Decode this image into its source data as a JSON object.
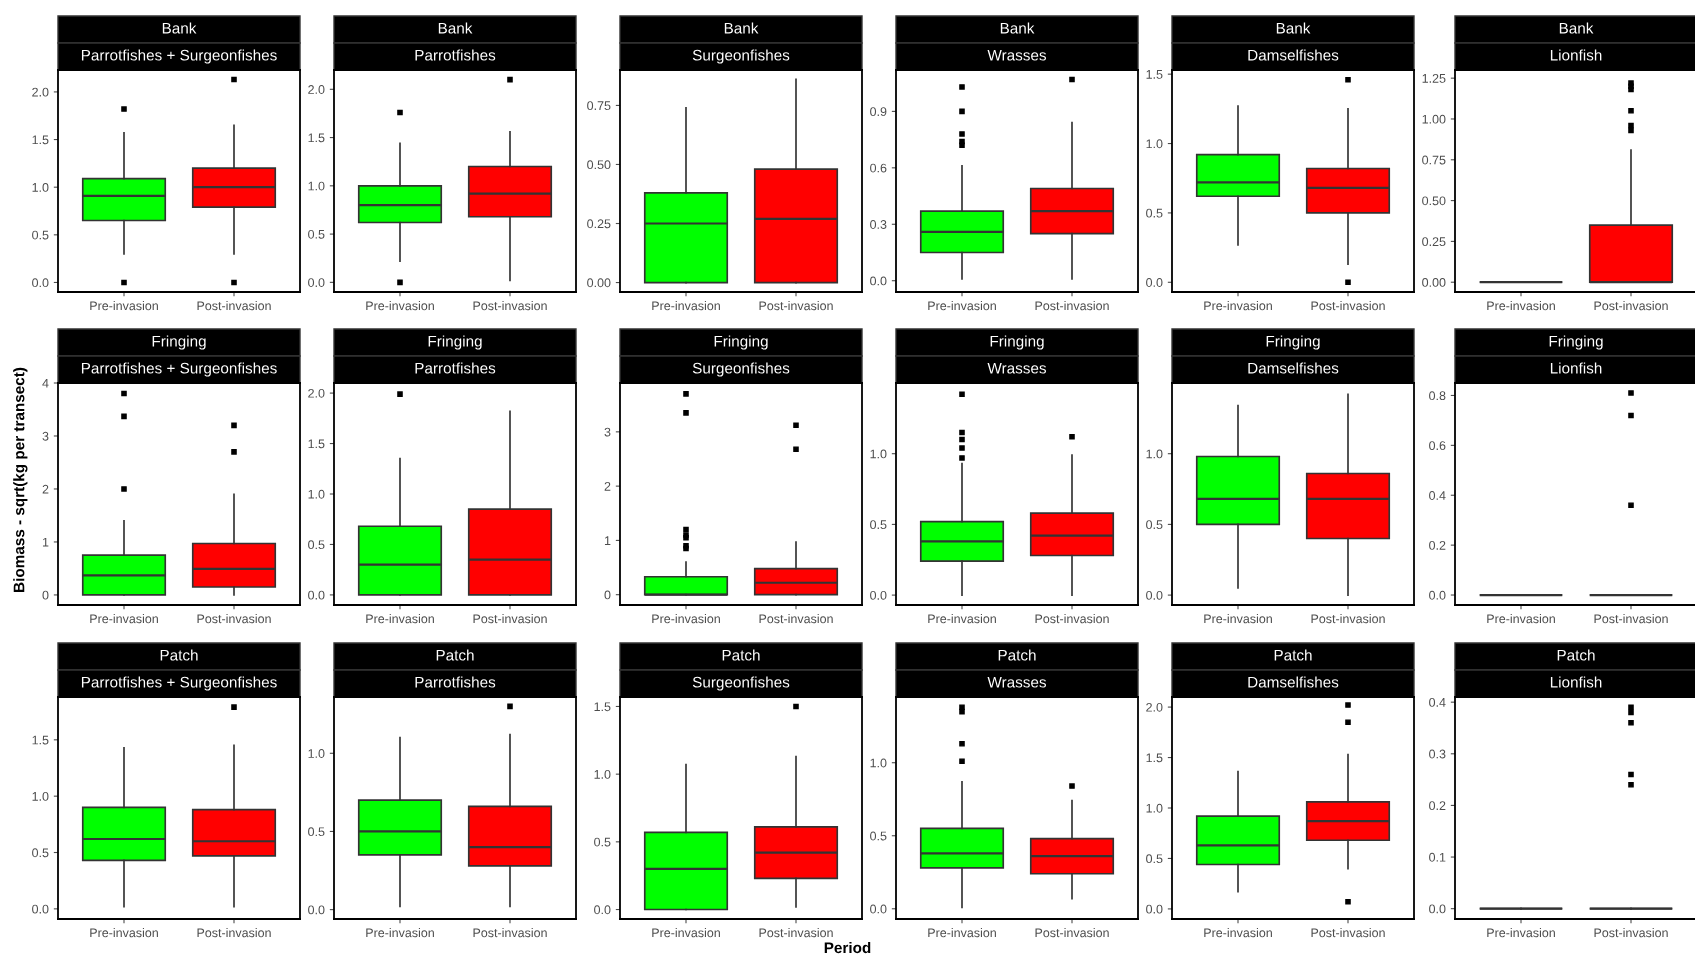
{
  "chart_data": [
    {
      "type": "box",
      "title": "Bank",
      "subtitle": "Parrotfishes + Surgeonfishes",
      "categories": [
        "Pre-invasion",
        "Post-invasion"
      ],
      "colors": [
        "#00ff00",
        "#ff0000"
      ],
      "ylim": [
        -0.1,
        2.23
      ],
      "yticks": [
        {
          "value": 0,
          "label": "0.0"
        },
        {
          "value": 0.5,
          "label": "0.5"
        },
        {
          "value": 1,
          "label": "1.0"
        },
        {
          "value": 1.5,
          "label": "1.5"
        },
        {
          "value": 2,
          "label": "2.0"
        }
      ],
      "boxes": [
        {
          "low": 0.3,
          "q1": 0.65,
          "median": 0.91,
          "q3": 1.09,
          "high": 1.57,
          "outliers": [
            0.0,
            1.82
          ]
        },
        {
          "low": 0.3,
          "q1": 0.79,
          "median": 1.0,
          "q3": 1.2,
          "high": 1.65,
          "outliers": [
            0.0,
            2.13
          ]
        }
      ]
    },
    {
      "type": "box",
      "title": "Bank",
      "subtitle": "Parrotfishes",
      "categories": [
        "Pre-invasion",
        "Post-invasion"
      ],
      "colors": [
        "#00ff00",
        "#ff0000"
      ],
      "ylim": [
        -0.1,
        2.2
      ],
      "yticks": [
        {
          "value": 0,
          "label": "0.0"
        },
        {
          "value": 0.5,
          "label": "0.5"
        },
        {
          "value": 1,
          "label": "1.0"
        },
        {
          "value": 1.5,
          "label": "1.5"
        },
        {
          "value": 2,
          "label": "2.0"
        }
      ],
      "boxes": [
        {
          "low": 0.22,
          "q1": 0.62,
          "median": 0.8,
          "q3": 1.0,
          "high": 1.44,
          "outliers": [
            0.0,
            1.76
          ]
        },
        {
          "low": 0.02,
          "q1": 0.68,
          "median": 0.92,
          "q3": 1.2,
          "high": 1.56,
          "outliers": [
            2.1
          ]
        }
      ]
    },
    {
      "type": "box",
      "title": "Bank",
      "subtitle": "Surgeonfishes",
      "categories": [
        "Pre-invasion",
        "Post-invasion"
      ],
      "colors": [
        "#00ff00",
        "#ff0000"
      ],
      "ylim": [
        -0.04,
        0.9
      ],
      "yticks": [
        {
          "value": 0,
          "label": "0.00"
        },
        {
          "value": 0.25,
          "label": "0.25"
        },
        {
          "value": 0.5,
          "label": "0.50"
        },
        {
          "value": 0.75,
          "label": "0.75"
        }
      ],
      "boxes": [
        {
          "low": 0,
          "q1": 0,
          "median": 0.25,
          "q3": 0.38,
          "high": 0.74
        },
        {
          "low": 0,
          "q1": 0,
          "median": 0.27,
          "q3": 0.48,
          "high": 0.86
        }
      ]
    },
    {
      "type": "box",
      "title": "Bank",
      "subtitle": "Wrasses",
      "categories": [
        "Pre-invasion",
        "Post-invasion"
      ],
      "colors": [
        "#00ff00",
        "#ff0000"
      ],
      "ylim": [
        -0.06,
        1.12
      ],
      "yticks": [
        {
          "value": 0,
          "label": "0.0"
        },
        {
          "value": 0.3,
          "label": "0.3"
        },
        {
          "value": 0.6,
          "label": "0.6"
        },
        {
          "value": 0.9,
          "label": "0.9"
        }
      ],
      "boxes": [
        {
          "low": 0.01,
          "q1": 0.15,
          "median": 0.26,
          "q3": 0.37,
          "high": 0.61,
          "outliers": [
            0.72,
            0.74,
            0.78,
            0.9,
            1.03
          ]
        },
        {
          "low": 0.01,
          "q1": 0.25,
          "median": 0.37,
          "q3": 0.49,
          "high": 0.84,
          "outliers": [
            1.07
          ]
        }
      ]
    },
    {
      "type": "box",
      "title": "Bank",
      "subtitle": "Damselfishes",
      "categories": [
        "Pre-invasion",
        "Post-invasion"
      ],
      "colors": [
        "#00ff00",
        "#ff0000"
      ],
      "ylim": [
        -0.07,
        1.53
      ],
      "yticks": [
        {
          "value": 0,
          "label": "0.0"
        },
        {
          "value": 0.5,
          "label": "0.5"
        },
        {
          "value": 1,
          "label": "1.0"
        },
        {
          "value": 1.5,
          "label": "1.5"
        }
      ],
      "boxes": [
        {
          "low": 0.27,
          "q1": 0.62,
          "median": 0.72,
          "q3": 0.92,
          "high": 1.27
        },
        {
          "low": 0.13,
          "q1": 0.5,
          "median": 0.68,
          "q3": 0.82,
          "high": 1.25,
          "outliers": [
            0.0,
            1.46
          ]
        }
      ]
    },
    {
      "type": "box",
      "title": "Bank",
      "subtitle": "Lionfish",
      "categories": [
        "Pre-invasion",
        "Post-invasion"
      ],
      "colors": [
        "#333333",
        "#ff0000"
      ],
      "ylim": [
        -0.06,
        1.3
      ],
      "yticks": [
        {
          "value": 0,
          "label": "0.00"
        },
        {
          "value": 0.25,
          "label": "0.25"
        },
        {
          "value": 0.5,
          "label": "0.50"
        },
        {
          "value": 0.75,
          "label": "0.75"
        },
        {
          "value": 1,
          "label": "1.00"
        },
        {
          "value": 1.25,
          "label": "1.25"
        }
      ],
      "boxes": [
        {
          "low": 0,
          "q1": 0,
          "median": 0,
          "q3": 0,
          "high": 0
        },
        {
          "low": 0,
          "q1": 0,
          "median": 0,
          "q3": 0.35,
          "high": 0.81,
          "outliers": [
            0.93,
            0.96,
            1.05,
            1.18,
            1.2,
            1.22
          ]
        }
      ]
    },
    {
      "type": "box",
      "title": "Fringing",
      "subtitle": "Parrotfishes + Surgeonfishes",
      "ylabel": "Biomass - sqrt(kg per transect)",
      "categories": [
        "Pre-invasion",
        "Post-invasion"
      ],
      "colors": [
        "#00ff00",
        "#ff0000"
      ],
      "ylim": [
        -0.19,
        4.0
      ],
      "yticks": [
        0,
        1,
        2,
        3,
        4
      ],
      "boxes": [
        {
          "low": 0,
          "q1": 0,
          "median": 0.37,
          "q3": 0.75,
          "high": 1.4,
          "outliers": [
            2.0,
            3.37,
            3.8
          ]
        },
        {
          "low": 0,
          "q1": 0.15,
          "median": 0.49,
          "q3": 0.97,
          "high": 1.9,
          "outliers": [
            2.7,
            3.2
          ]
        }
      ]
    },
    {
      "type": "box",
      "title": "Fringing",
      "subtitle": "Parrotfishes",
      "categories": [
        "Pre-invasion",
        "Post-invasion"
      ],
      "colors": [
        "#00ff00",
        "#ff0000"
      ],
      "ylim": [
        -0.1,
        2.1
      ],
      "yticks": [
        {
          "value": 0,
          "label": "0.0"
        },
        {
          "value": 0.5,
          "label": "0.5"
        },
        {
          "value": 1,
          "label": "1.0"
        },
        {
          "value": 1.5,
          "label": "1.5"
        },
        {
          "value": 2,
          "label": "2.0"
        }
      ],
      "boxes": [
        {
          "low": 0,
          "q1": 0,
          "median": 0.3,
          "q3": 0.68,
          "high": 1.35,
          "outliers": [
            1.99
          ]
        },
        {
          "low": 0,
          "q1": 0,
          "median": 0.35,
          "q3": 0.85,
          "high": 1.82
        }
      ]
    },
    {
      "type": "box",
      "title": "Fringing",
      "subtitle": "Surgeonfishes",
      "categories": [
        "Pre-invasion",
        "Post-invasion"
      ],
      "colors": [
        "#00ff00",
        "#ff0000"
      ],
      "ylim": [
        -0.19,
        3.9
      ],
      "yticks": [
        0,
        1,
        2,
        3
      ],
      "boxes": [
        {
          "low": 0,
          "q1": 0,
          "median": 0,
          "q3": 0.33,
          "high": 0.6,
          "outliers": [
            0.85,
            0.9,
            1.05,
            1.1,
            1.2,
            3.35,
            3.7
          ]
        },
        {
          "low": 0,
          "q1": 0,
          "median": 0.22,
          "q3": 0.48,
          "high": 0.97,
          "outliers": [
            2.68,
            3.12
          ]
        }
      ]
    },
    {
      "type": "box",
      "title": "Fringing",
      "subtitle": "Wrasses",
      "categories": [
        "Pre-invasion",
        "Post-invasion"
      ],
      "colors": [
        "#00ff00",
        "#ff0000"
      ],
      "ylim": [
        -0.07,
        1.5
      ],
      "yticks": [
        {
          "value": 0,
          "label": "0.0"
        },
        {
          "value": 0.5,
          "label": "0.5"
        },
        {
          "value": 1,
          "label": "1.0"
        }
      ],
      "boxes": [
        {
          "low": 0,
          "q1": 0.24,
          "median": 0.38,
          "q3": 0.52,
          "high": 0.93,
          "outliers": [
            0.97,
            1.04,
            1.1,
            1.15,
            1.42
          ]
        },
        {
          "low": 0,
          "q1": 0.28,
          "median": 0.42,
          "q3": 0.58,
          "high": 0.99,
          "outliers": [
            1.12
          ]
        }
      ]
    },
    {
      "type": "box",
      "title": "Fringing",
      "subtitle": "Damselfishes",
      "categories": [
        "Pre-invasion",
        "Post-invasion"
      ],
      "colors": [
        "#00ff00",
        "#ff0000"
      ],
      "ylim": [
        -0.07,
        1.5
      ],
      "yticks": [
        {
          "value": 0,
          "label": "0.0"
        },
        {
          "value": 0.5,
          "label": "0.5"
        },
        {
          "value": 1,
          "label": "1.0"
        }
      ],
      "boxes": [
        {
          "low": 0.05,
          "q1": 0.5,
          "median": 0.68,
          "q3": 0.98,
          "high": 1.34
        },
        {
          "low": 0,
          "q1": 0.4,
          "median": 0.68,
          "q3": 0.86,
          "high": 1.42
        }
      ]
    },
    {
      "type": "box",
      "title": "Fringing",
      "subtitle": "Lionfish",
      "categories": [
        "Pre-invasion",
        "Post-invasion"
      ],
      "colors": [
        "#333333",
        "#333333"
      ],
      "ylim": [
        -0.04,
        0.85
      ],
      "yticks": [
        {
          "value": 0,
          "label": "0.0"
        },
        {
          "value": 0.2,
          "label": "0.2"
        },
        {
          "value": 0.4,
          "label": "0.4"
        },
        {
          "value": 0.6,
          "label": "0.6"
        },
        {
          "value": 0.8,
          "label": "0.8"
        }
      ],
      "boxes": [
        {
          "low": 0,
          "q1": 0,
          "median": 0,
          "q3": 0,
          "high": 0
        },
        {
          "low": 0,
          "q1": 0,
          "median": 0,
          "q3": 0,
          "high": 0,
          "outliers": [
            0.36,
            0.72,
            0.81
          ]
        }
      ]
    },
    {
      "type": "box",
      "title": "Patch",
      "subtitle": "Parrotfishes + Surgeonfishes",
      "categories": [
        "Pre-invasion",
        "Post-invasion"
      ],
      "colors": [
        "#00ff00",
        "#ff0000"
      ],
      "ylim": [
        -0.09,
        1.88
      ],
      "yticks": [
        {
          "value": 0,
          "label": "0.0"
        },
        {
          "value": 0.5,
          "label": "0.5"
        },
        {
          "value": 1,
          "label": "1.0"
        },
        {
          "value": 1.5,
          "label": "1.5"
        }
      ],
      "boxes": [
        {
          "low": 0.02,
          "q1": 0.43,
          "median": 0.62,
          "q3": 0.9,
          "high": 1.43
        },
        {
          "low": 0.02,
          "q1": 0.47,
          "median": 0.6,
          "q3": 0.88,
          "high": 1.45,
          "outliers": [
            1.79
          ]
        }
      ]
    },
    {
      "type": "box",
      "title": "Patch",
      "subtitle": "Parrotfishes",
      "categories": [
        "Pre-invasion",
        "Post-invasion"
      ],
      "colors": [
        "#00ff00",
        "#ff0000"
      ],
      "ylim": [
        -0.06,
        1.36
      ],
      "yticks": [
        {
          "value": 0,
          "label": "0.0"
        },
        {
          "value": 0.5,
          "label": "0.5"
        },
        {
          "value": 1,
          "label": "1.0"
        }
      ],
      "boxes": [
        {
          "low": 0.02,
          "q1": 0.35,
          "median": 0.5,
          "q3": 0.7,
          "high": 1.1
        },
        {
          "low": 0.02,
          "q1": 0.28,
          "median": 0.4,
          "q3": 0.66,
          "high": 1.12,
          "outliers": [
            1.3
          ]
        }
      ]
    },
    {
      "type": "box",
      "title": "Patch",
      "subtitle": "Surgeonfishes",
      "xlabel": "Period",
      "categories": [
        "Pre-invasion",
        "Post-invasion"
      ],
      "colors": [
        "#00ff00",
        "#ff0000"
      ],
      "ylim": [
        -0.07,
        1.57
      ],
      "yticks": [
        {
          "value": 0,
          "label": "0.0"
        },
        {
          "value": 0.5,
          "label": "0.5"
        },
        {
          "value": 1,
          "label": "1.0"
        },
        {
          "value": 1.5,
          "label": "1.5"
        }
      ],
      "boxes": [
        {
          "low": 0,
          "q1": 0,
          "median": 0.3,
          "q3": 0.57,
          "high": 1.07
        },
        {
          "low": 0.02,
          "q1": 0.23,
          "median": 0.42,
          "q3": 0.61,
          "high": 1.13,
          "outliers": [
            1.5
          ]
        }
      ]
    },
    {
      "type": "box",
      "title": "Patch",
      "subtitle": "Wrasses",
      "categories": [
        "Pre-invasion",
        "Post-invasion"
      ],
      "colors": [
        "#00ff00",
        "#ff0000"
      ],
      "ylim": [
        -0.07,
        1.45
      ],
      "yticks": [
        {
          "value": 0,
          "label": "0.0"
        },
        {
          "value": 0.5,
          "label": "0.5"
        },
        {
          "value": 1,
          "label": "1.0"
        }
      ],
      "boxes": [
        {
          "low": 0.01,
          "q1": 0.28,
          "median": 0.38,
          "q3": 0.55,
          "high": 0.87,
          "outliers": [
            1.01,
            1.13,
            1.35,
            1.38
          ]
        },
        {
          "low": 0.07,
          "q1": 0.24,
          "median": 0.36,
          "q3": 0.48,
          "high": 0.74,
          "outliers": [
            0.84
          ]
        }
      ]
    },
    {
      "type": "box",
      "title": "Patch",
      "subtitle": "Damselfishes",
      "categories": [
        "Pre-invasion",
        "Post-invasion"
      ],
      "colors": [
        "#00ff00",
        "#ff0000"
      ],
      "ylim": [
        -0.1,
        2.1
      ],
      "yticks": [
        {
          "value": 0,
          "label": "0.0"
        },
        {
          "value": 0.5,
          "label": "0.5"
        },
        {
          "value": 1,
          "label": "1.0"
        },
        {
          "value": 1.5,
          "label": "1.5"
        },
        {
          "value": 2,
          "label": "2.0"
        }
      ],
      "boxes": [
        {
          "low": 0.17,
          "q1": 0.44,
          "median": 0.63,
          "q3": 0.92,
          "high": 1.36
        },
        {
          "low": 0.4,
          "q1": 0.68,
          "median": 0.87,
          "q3": 1.06,
          "high": 1.53,
          "outliers": [
            0.07,
            1.85,
            2.02
          ]
        }
      ]
    },
    {
      "type": "box",
      "title": "Patch",
      "subtitle": "Lionfish",
      "categories": [
        "Pre-invasion",
        "Post-invasion"
      ],
      "colors": [
        "#333333",
        "#333333"
      ],
      "ylim": [
        -0.02,
        0.41
      ],
      "yticks": [
        {
          "value": 0,
          "label": "0.0"
        },
        {
          "value": 0.1,
          "label": "0.1"
        },
        {
          "value": 0.2,
          "label": "0.2"
        },
        {
          "value": 0.3,
          "label": "0.3"
        },
        {
          "value": 0.4,
          "label": "0.4"
        }
      ],
      "boxes": [
        {
          "low": 0,
          "q1": 0,
          "median": 0,
          "q3": 0,
          "high": 0
        },
        {
          "low": 0,
          "q1": 0,
          "median": 0,
          "q3": 0,
          "high": 0,
          "outliers": [
            0.24,
            0.26,
            0.36,
            0.38,
            0.39
          ]
        }
      ]
    }
  ]
}
